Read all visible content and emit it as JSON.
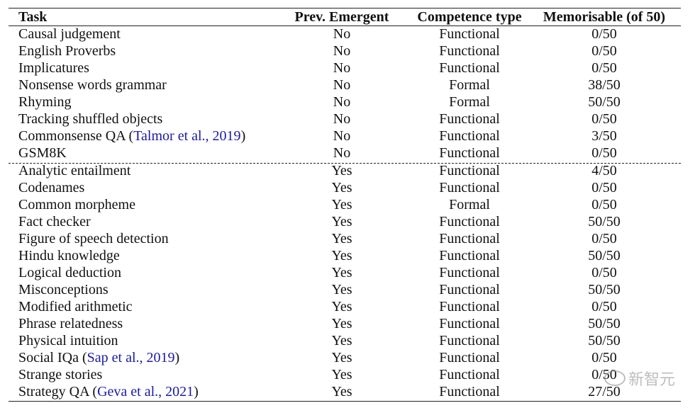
{
  "header": {
    "task": "Task",
    "prev": "Prev. Emergent",
    "competence": "Competence type",
    "memorisable": "Memorisable (of 50)"
  },
  "rows": [
    {
      "task": "Causal judgement",
      "cite": "",
      "post": "",
      "prev": "No",
      "competence": "Functional",
      "mem": "0/50"
    },
    {
      "task": "English Proverbs",
      "cite": "",
      "post": "",
      "prev": "No",
      "competence": "Functional",
      "mem": "0/50"
    },
    {
      "task": "Implicatures",
      "cite": "",
      "post": "",
      "prev": "No",
      "competence": "Functional",
      "mem": "0/50"
    },
    {
      "task": "Nonsense words grammar",
      "cite": "",
      "post": "",
      "prev": "No",
      "competence": "Formal",
      "mem": "38/50"
    },
    {
      "task": "Rhyming",
      "cite": "",
      "post": "",
      "prev": "No",
      "competence": "Formal",
      "mem": "50/50"
    },
    {
      "task": "Tracking shuffled objects",
      "cite": "",
      "post": "",
      "prev": "No",
      "competence": "Functional",
      "mem": "0/50"
    },
    {
      "task": "Commonsense QA (",
      "cite": "Talmor et al., 2019",
      "post": ")",
      "prev": "No",
      "competence": "Functional",
      "mem": "3/50"
    },
    {
      "task": "GSM8K",
      "cite": "",
      "post": "",
      "prev": "No",
      "competence": "Functional",
      "mem": "0/50"
    },
    {
      "task": "Analytic entailment",
      "cite": "",
      "post": "",
      "prev": "Yes",
      "competence": "Functional",
      "mem": "4/50"
    },
    {
      "task": "Codenames",
      "cite": "",
      "post": "",
      "prev": "Yes",
      "competence": "Functional",
      "mem": "0/50"
    },
    {
      "task": "Common morpheme",
      "cite": "",
      "post": "",
      "prev": "Yes",
      "competence": "Formal",
      "mem": "0/50"
    },
    {
      "task": "Fact checker",
      "cite": "",
      "post": "",
      "prev": "Yes",
      "competence": "Functional",
      "mem": "50/50"
    },
    {
      "task": "Figure of speech detection",
      "cite": "",
      "post": "",
      "prev": "Yes",
      "competence": "Functional",
      "mem": "0/50"
    },
    {
      "task": "Hindu knowledge",
      "cite": "",
      "post": "",
      "prev": "Yes",
      "competence": "Functional",
      "mem": "50/50"
    },
    {
      "task": "Logical deduction",
      "cite": "",
      "post": "",
      "prev": "Yes",
      "competence": "Functional",
      "mem": "0/50"
    },
    {
      "task": "Misconceptions",
      "cite": "",
      "post": "",
      "prev": "Yes",
      "competence": "Functional",
      "mem": "50/50"
    },
    {
      "task": "Modified arithmetic",
      "cite": "",
      "post": "",
      "prev": "Yes",
      "competence": "Functional",
      "mem": "0/50"
    },
    {
      "task": "Phrase relatedness",
      "cite": "",
      "post": "",
      "prev": "Yes",
      "competence": "Functional",
      "mem": "50/50"
    },
    {
      "task": "Physical intuition",
      "cite": "",
      "post": "",
      "prev": "Yes",
      "competence": "Functional",
      "mem": "50/50"
    },
    {
      "task": "Social IQa (",
      "cite": "Sap et al., 2019",
      "post": ")",
      "prev": "Yes",
      "competence": "Functional",
      "mem": "0/50"
    },
    {
      "task": "Strange stories",
      "cite": "",
      "post": "",
      "prev": "Yes",
      "competence": "Functional",
      "mem": "0/50"
    },
    {
      "task": "Strategy QA (",
      "cite": "Geva et al., 2021",
      "post": ")",
      "prev": "Yes",
      "competence": "Functional",
      "mem": "27/50"
    }
  ],
  "watermark": "新智元",
  "colors": {
    "citation": "#1a1aa6",
    "text": "#111111"
  }
}
